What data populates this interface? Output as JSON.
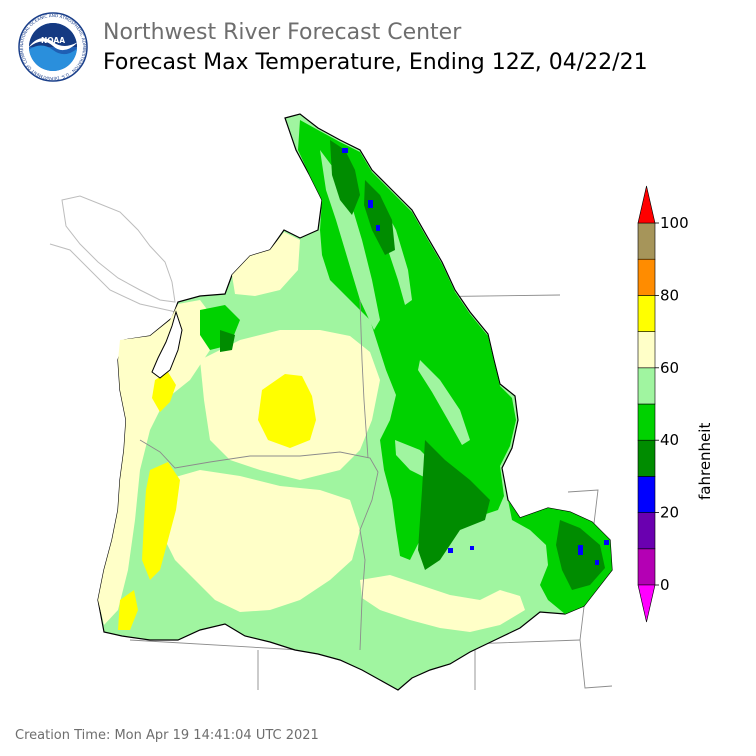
{
  "header": {
    "organization": "Northwest River Forecast Center",
    "title": "Forecast Max Temperature, Ending 12Z, 04/22/21"
  },
  "logo": {
    "icon": "noaa-logo",
    "text": "NOAA",
    "ring_text": "NATIONAL OCEANIC AND ATMOSPHERIC ADMINISTRATION · U.S. DEPARTMENT OF COMMERCE"
  },
  "legend": {
    "unit": "fahrenheit",
    "ticks": [
      "0",
      "20",
      "40",
      "60",
      "80",
      "100"
    ],
    "bins": [
      {
        "min": 0,
        "max": 10,
        "color": "#b400b4"
      },
      {
        "min": 10,
        "max": 20,
        "color": "#6a00b0"
      },
      {
        "min": 20,
        "max": 30,
        "color": "#0000ff"
      },
      {
        "min": 30,
        "max": 40,
        "color": "#008c00"
      },
      {
        "min": 40,
        "max": 50,
        "color": "#00d200"
      },
      {
        "min": 50,
        "max": 60,
        "color": "#a0f5a0"
      },
      {
        "min": 60,
        "max": 70,
        "color": "#ffffc8"
      },
      {
        "min": 70,
        "max": 80,
        "color": "#ffff00"
      },
      {
        "min": 80,
        "max": 90,
        "color": "#ff8c00"
      },
      {
        "min": 90,
        "max": 100,
        "color": "#a6955a"
      }
    ],
    "under_color": "#ff00ff",
    "over_color": "#ff0000"
  },
  "footer": {
    "creation_time": "Creation Time: Mon Apr 19 14:41:04 UTC 2021"
  }
}
